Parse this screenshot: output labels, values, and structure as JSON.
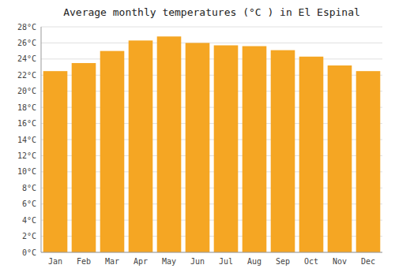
{
  "chart_data": {
    "type": "bar",
    "title": "Average monthly temperatures (°C ) in El Espinal",
    "categories": [
      "Jan",
      "Feb",
      "Mar",
      "Apr",
      "May",
      "Jun",
      "Jul",
      "Aug",
      "Sep",
      "Oct",
      "Nov",
      "Dec"
    ],
    "values": [
      22.5,
      23.5,
      25.0,
      26.3,
      26.8,
      26.0,
      25.7,
      25.6,
      25.1,
      24.3,
      23.2,
      22.5
    ],
    "color": "#F5A623",
    "ylim": [
      0,
      28
    ],
    "yticks": [
      {
        "value": 0,
        "label": "0°C"
      },
      {
        "value": 2,
        "label": "2°C"
      },
      {
        "value": 4,
        "label": "4°C"
      },
      {
        "value": 6,
        "label": "6°C"
      },
      {
        "value": 8,
        "label": "8°C"
      },
      {
        "value": 10,
        "label": "10°C"
      },
      {
        "value": 12,
        "label": "12°C"
      },
      {
        "value": 14,
        "label": "14°C"
      },
      {
        "value": 16,
        "label": "16°C"
      },
      {
        "value": 18,
        "label": "18°C"
      },
      {
        "value": 20,
        "label": "20°C"
      },
      {
        "value": 22,
        "label": "22°C"
      },
      {
        "value": 24,
        "label": "24°C"
      },
      {
        "value": 26,
        "label": "26°C"
      },
      {
        "value": 28,
        "label": "28°C"
      }
    ],
    "grid": true
  }
}
